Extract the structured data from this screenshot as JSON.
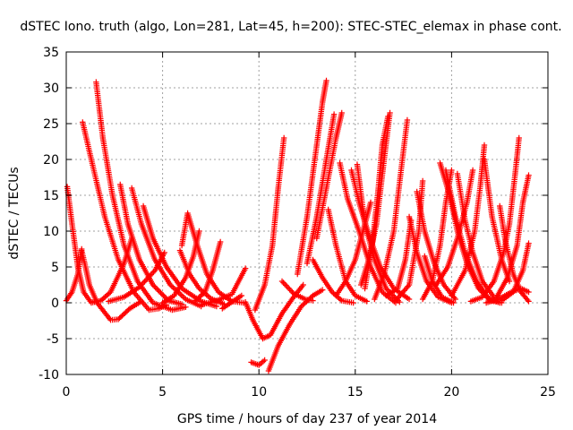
{
  "chart_data": {
    "type": "scatter",
    "title": "dSTEC Iono. truth (algo, Lon=281, Lat=45, h=200): STEC-STEC_elemax in phase cont.",
    "xlabel": "GPS time / hours of day 237 of year 2014",
    "ylabel": "dSTEC  / TECUs",
    "xlim": [
      0,
      25
    ],
    "ylim": [
      -10,
      35
    ],
    "xticks": [
      0,
      5,
      10,
      15,
      20,
      25
    ],
    "yticks": [
      -10,
      -5,
      0,
      5,
      10,
      15,
      20,
      25,
      30,
      35
    ],
    "grid": true,
    "marker": "plus",
    "color": "#ff0000",
    "arcs": [
      [
        [
          0.05,
          16.2
        ],
        [
          0.3,
          11
        ],
        [
          0.6,
          5
        ],
        [
          0.9,
          1.5
        ],
        [
          1.3,
          0
        ],
        [
          1.8,
          0.3
        ],
        [
          2.3,
          1.5
        ],
        [
          3.0,
          5.5
        ],
        [
          3.4,
          9.0
        ]
      ],
      [
        [
          0.0,
          0.3
        ],
        [
          0.3,
          1.5
        ],
        [
          0.6,
          4
        ],
        [
          0.8,
          7.5
        ]
      ],
      [
        [
          0.8,
          7.3
        ],
        [
          1.0,
          5
        ],
        [
          1.2,
          2.5
        ],
        [
          1.6,
          0
        ],
        [
          2.3,
          -2.4
        ],
        [
          2.7,
          -2.3
        ],
        [
          3.3,
          -0.8
        ],
        [
          3.9,
          0.2
        ]
      ],
      [
        [
          0.85,
          25.2
        ],
        [
          1.3,
          20
        ],
        [
          2.0,
          12
        ],
        [
          2.7,
          6
        ],
        [
          3.5,
          1.5
        ],
        [
          4.3,
          -1.0
        ],
        [
          4.8,
          -0.8
        ],
        [
          5.2,
          -0.3
        ]
      ],
      [
        [
          1.55,
          30.8
        ],
        [
          1.9,
          23
        ],
        [
          2.4,
          15
        ],
        [
          3.0,
          8
        ],
        [
          3.7,
          3
        ],
        [
          4.5,
          0
        ],
        [
          5.5,
          -1.0
        ],
        [
          6.2,
          -0.6
        ]
      ],
      [
        [
          2.8,
          16.5
        ],
        [
          3.2,
          11
        ],
        [
          3.8,
          6
        ],
        [
          4.5,
          2.5
        ],
        [
          5.3,
          0.3
        ],
        [
          6.0,
          -0.2
        ]
      ],
      [
        [
          3.4,
          16.0
        ],
        [
          3.9,
          11
        ],
        [
          4.6,
          6
        ],
        [
          5.4,
          2.5
        ],
        [
          6.2,
          0.5
        ],
        [
          7.0,
          -0.5
        ]
      ],
      [
        [
          4.0,
          13.5
        ],
        [
          4.5,
          9
        ],
        [
          5.2,
          5
        ],
        [
          6.0,
          2
        ],
        [
          7.0,
          0.2
        ],
        [
          7.8,
          -0.5
        ]
      ],
      [
        [
          2.2,
          0.2
        ],
        [
          3.0,
          0.8
        ],
        [
          3.8,
          2.2
        ],
        [
          4.6,
          4.5
        ],
        [
          5.1,
          7.0
        ]
      ],
      [
        [
          5.0,
          0
        ],
        [
          5.6,
          1.0
        ],
        [
          6.2,
          3.5
        ],
        [
          6.6,
          6.5
        ],
        [
          6.9,
          10.0
        ]
      ],
      [
        [
          6.0,
          8.0
        ],
        [
          6.3,
          12.5
        ],
        [
          6.8,
          8
        ],
        [
          7.3,
          4
        ],
        [
          7.9,
          1.5
        ],
        [
          8.6,
          0.2
        ],
        [
          9.2,
          0.0
        ]
      ],
      [
        [
          5.9,
          7.3
        ],
        [
          6.4,
          4
        ],
        [
          6.9,
          2
        ],
        [
          7.5,
          0.6
        ],
        [
          8.2,
          -0.2
        ]
      ],
      [
        [
          6.7,
          0.3
        ],
        [
          7.2,
          1.5
        ],
        [
          7.6,
          4.5
        ],
        [
          8.0,
          8.5
        ]
      ],
      [
        [
          7.0,
          -0.3
        ],
        [
          7.8,
          0.3
        ],
        [
          8.6,
          1.2
        ],
        [
          9.3,
          4.8
        ]
      ],
      [
        [
          8.1,
          -0.8
        ],
        [
          8.7,
          0.3
        ],
        [
          9.1,
          1.0
        ]
      ],
      [
        [
          9.6,
          -8.3
        ],
        [
          10.0,
          -8.7
        ],
        [
          10.3,
          -8.0
        ]
      ],
      [
        [
          9.3,
          0.1
        ],
        [
          9.7,
          -2.5
        ],
        [
          10.2,
          -5.0
        ],
        [
          10.6,
          -4.5
        ],
        [
          11.2,
          -1.5
        ],
        [
          11.8,
          0.8
        ],
        [
          12.3,
          2.5
        ]
      ],
      [
        [
          10.5,
          -9.5
        ],
        [
          11.0,
          -6.0
        ],
        [
          11.6,
          -3.0
        ],
        [
          12.2,
          -0.5
        ],
        [
          12.8,
          1.0
        ],
        [
          13.3,
          1.8
        ]
      ],
      [
        [
          9.8,
          -1.0
        ],
        [
          10.3,
          2.5
        ],
        [
          10.7,
          8.0
        ],
        [
          11.0,
          16.0
        ],
        [
          11.3,
          23.0
        ]
      ],
      [
        [
          11.2,
          3.0
        ],
        [
          11.8,
          1.3
        ],
        [
          12.4,
          0.5
        ],
        [
          12.8,
          0.3
        ]
      ],
      [
        [
          12.0,
          4.0
        ],
        [
          12.5,
          12
        ],
        [
          13.0,
          22
        ],
        [
          13.3,
          28
        ],
        [
          13.5,
          31
        ]
      ],
      [
        [
          12.5,
          5.5
        ],
        [
          13.0,
          12
        ],
        [
          13.5,
          20
        ],
        [
          13.9,
          26.3
        ]
      ],
      [
        [
          13.0,
          9.0
        ],
        [
          13.5,
          16
        ],
        [
          14.0,
          23
        ],
        [
          14.3,
          26.5
        ]
      ],
      [
        [
          12.8,
          6.0
        ],
        [
          13.3,
          3.5
        ],
        [
          13.8,
          1.5
        ],
        [
          14.3,
          0.3
        ],
        [
          14.9,
          0.0
        ]
      ],
      [
        [
          13.6,
          13.0
        ],
        [
          14.0,
          8
        ],
        [
          14.5,
          3
        ],
        [
          15.0,
          1.0
        ],
        [
          15.6,
          0.2
        ]
      ],
      [
        [
          14.2,
          19.5
        ],
        [
          14.6,
          14.5
        ],
        [
          15.2,
          10
        ],
        [
          15.8,
          5
        ],
        [
          16.4,
          1.5
        ],
        [
          17.1,
          0
        ]
      ],
      [
        [
          14.8,
          18.5
        ],
        [
          15.2,
          14
        ],
        [
          15.7,
          9.5
        ],
        [
          16.3,
          5
        ],
        [
          17.0,
          2
        ],
        [
          17.8,
          0.5
        ]
      ],
      [
        [
          15.1,
          19.3
        ],
        [
          15.5,
          11
        ],
        [
          16.0,
          6
        ],
        [
          16.6,
          2
        ],
        [
          17.3,
          0.1
        ]
      ],
      [
        [
          14.0,
          1.0
        ],
        [
          14.5,
          3
        ],
        [
          15.0,
          6
        ],
        [
          15.4,
          10
        ],
        [
          15.8,
          14
        ]
      ],
      [
        [
          15.3,
          2.5
        ],
        [
          15.7,
          6.0
        ],
        [
          16.1,
          11.0
        ],
        [
          16.5,
          20
        ],
        [
          16.8,
          26.5
        ]
      ],
      [
        [
          15.5,
          2.0
        ],
        [
          15.9,
          8.5
        ],
        [
          16.2,
          16
        ],
        [
          16.4,
          22.0
        ],
        [
          16.7,
          26.0
        ]
      ],
      [
        [
          16.0,
          0.5
        ],
        [
          16.5,
          4
        ],
        [
          17.0,
          10
        ],
        [
          17.4,
          19
        ],
        [
          17.7,
          25.5
        ]
      ],
      [
        [
          16.6,
          1.0
        ],
        [
          17.2,
          2.0
        ],
        [
          17.6,
          6.0
        ],
        [
          17.9,
          11.5
        ]
      ],
      [
        [
          17.1,
          0.3
        ],
        [
          17.8,
          2.5
        ],
        [
          18.3,
          10
        ],
        [
          18.5,
          17
        ]
      ],
      [
        [
          18.2,
          15.5
        ],
        [
          18.6,
          10
        ],
        [
          19.1,
          5.5
        ],
        [
          19.6,
          2.5
        ],
        [
          20.2,
          0.5
        ]
      ],
      [
        [
          17.8,
          12.0
        ],
        [
          18.2,
          7
        ],
        [
          18.7,
          3
        ],
        [
          19.3,
          0.8
        ],
        [
          20.0,
          0.0
        ]
      ],
      [
        [
          18.5,
          0.5
        ],
        [
          19.0,
          3
        ],
        [
          19.4,
          8
        ],
        [
          19.7,
          14.0
        ],
        [
          20.0,
          18.5
        ]
      ],
      [
        [
          18.6,
          6.5
        ],
        [
          19.0,
          3
        ],
        [
          19.5,
          0.8
        ],
        [
          20.1,
          0
        ]
      ],
      [
        [
          19.4,
          19.5
        ],
        [
          19.9,
          15
        ],
        [
          20.3,
          10
        ],
        [
          20.8,
          5.5
        ],
        [
          21.4,
          2
        ],
        [
          22.0,
          0.3
        ],
        [
          22.6,
          0
        ]
      ],
      [
        [
          19.7,
          18.5
        ],
        [
          20.2,
          12
        ],
        [
          20.7,
          7
        ],
        [
          21.3,
          3
        ],
        [
          21.9,
          0.7
        ],
        [
          22.5,
          0
        ]
      ],
      [
        [
          20.3,
          18.0
        ],
        [
          20.7,
          11.5
        ],
        [
          21.1,
          7
        ],
        [
          21.6,
          3
        ],
        [
          22.2,
          0.8
        ]
      ],
      [
        [
          19.2,
          2.5
        ],
        [
          19.8,
          5
        ],
        [
          20.3,
          9
        ],
        [
          20.8,
          14
        ],
        [
          21.1,
          18.5
        ]
      ],
      [
        [
          20.0,
          1.0
        ],
        [
          20.7,
          4.5
        ],
        [
          21.2,
          10.0
        ],
        [
          21.5,
          16.5
        ],
        [
          21.7,
          22.0
        ]
      ],
      [
        [
          21.7,
          20.0
        ],
        [
          22.1,
          12
        ],
        [
          22.6,
          6
        ],
        [
          23.0,
          3
        ]
      ],
      [
        [
          21.0,
          0.2
        ],
        [
          21.6,
          0.8
        ],
        [
          22.2,
          3
        ],
        [
          22.7,
          7
        ],
        [
          23.0,
          11
        ],
        [
          23.3,
          18
        ],
        [
          23.5,
          23.0
        ]
      ],
      [
        [
          22.5,
          13.5
        ],
        [
          22.8,
          8.5
        ],
        [
          23.2,
          4
        ],
        [
          23.6,
          1.5
        ],
        [
          24.0,
          0.2
        ]
      ],
      [
        [
          22.3,
          0.6
        ],
        [
          22.9,
          3.5
        ],
        [
          23.4,
          8.0
        ],
        [
          23.7,
          14.0
        ],
        [
          24.0,
          17.8
        ]
      ],
      [
        [
          22.6,
          0.3
        ],
        [
          23.2,
          1.5
        ],
        [
          23.7,
          4.5
        ],
        [
          24.0,
          8.3
        ]
      ],
      [
        [
          21.8,
          0.0
        ],
        [
          22.5,
          0.6
        ],
        [
          23.1,
          1.5
        ],
        [
          23.6,
          2.0
        ],
        [
          24.0,
          1.5
        ]
      ]
    ]
  }
}
